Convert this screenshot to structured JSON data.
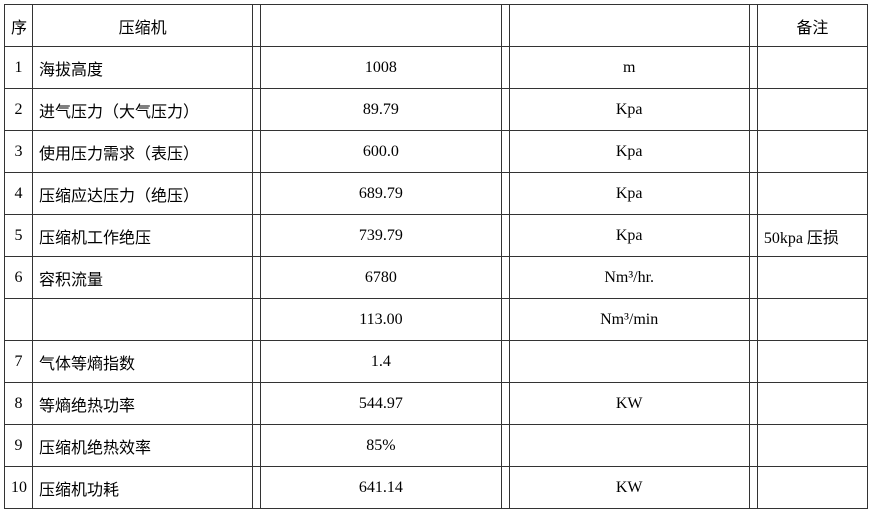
{
  "table": {
    "header": {
      "seq": "序",
      "name": "压缩机",
      "value": "",
      "unit": "",
      "note": "备注"
    },
    "rows": [
      {
        "seq": "1",
        "name": "海拔高度",
        "value": "1008",
        "unit": "m",
        "note": ""
      },
      {
        "seq": "2",
        "name": "进气压力（大气压力）",
        "value": "89.79",
        "unit": "Kpa",
        "note": ""
      },
      {
        "seq": "3",
        "name": "使用压力需求（表压）",
        "value": "600.0",
        "unit": "Kpa",
        "note": ""
      },
      {
        "seq": "4",
        "name": "压缩应达压力（绝压）",
        "value": "689.79",
        "unit": "Kpa",
        "note": ""
      },
      {
        "seq": "5",
        "name": "压缩机工作绝压",
        "value": "739.79",
        "unit": "Kpa",
        "note": "50kpa 压损"
      },
      {
        "seq": "6",
        "name": "容积流量",
        "value": "6780",
        "unit": "Nm³/hr.",
        "note": ""
      },
      {
        "seq": "",
        "name": "",
        "value": "113.00",
        "unit": "Nm³/min",
        "note": ""
      },
      {
        "seq": "7",
        "name": "气体等熵指数",
        "value": "1.4",
        "unit": "",
        "note": ""
      },
      {
        "seq": "8",
        "name": "等熵绝热功率",
        "value": "544.97",
        "unit": "KW",
        "note": ""
      },
      {
        "seq": "9",
        "name": "压缩机绝热效率",
        "value": "85%",
        "unit": "",
        "note": ""
      },
      {
        "seq": "10",
        "name": "压缩机功耗",
        "value": "641.14",
        "unit": "KW",
        "note": ""
      }
    ]
  }
}
